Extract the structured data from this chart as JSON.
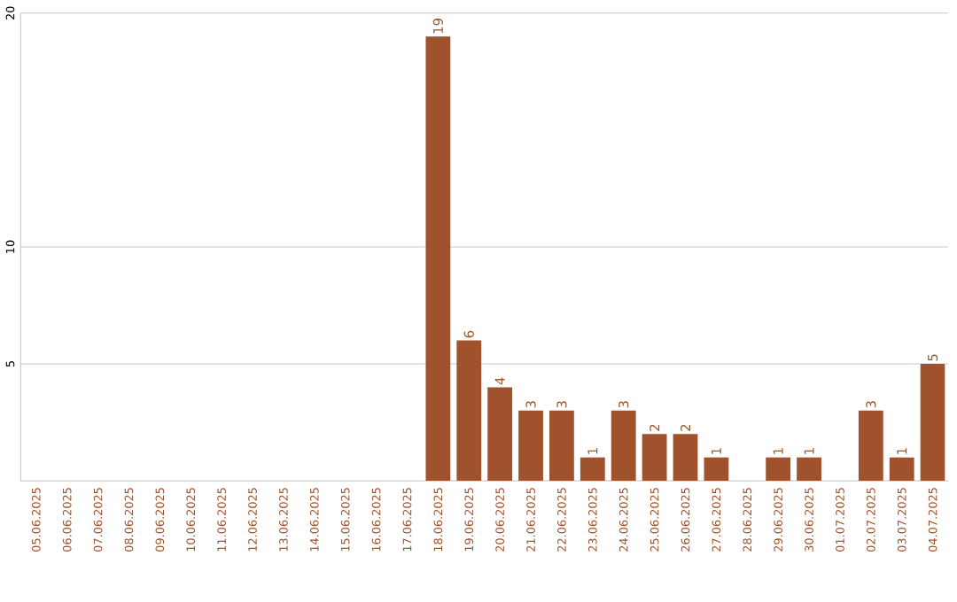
{
  "chart_data": {
    "type": "bar",
    "categories": [
      "05.06.2025",
      "06.06.2025",
      "07.06.2025",
      "08.06.2025",
      "09.06.2025",
      "10.06.2025",
      "11.06.2025",
      "12.06.2025",
      "13.06.2025",
      "14.06.2025",
      "15.06.2025",
      "16.06.2025",
      "17.06.2025",
      "18.06.2025",
      "19.06.2025",
      "20.06.2025",
      "21.06.2025",
      "22.06.2025",
      "23.06.2025",
      "24.06.2025",
      "25.06.2025",
      "26.06.2025",
      "27.06.2025",
      "28.06.2025",
      "29.06.2025",
      "30.06.2025",
      "01.07.2025",
      "02.07.2025",
      "03.07.2025",
      "04.07.2025"
    ],
    "values": [
      0,
      0,
      0,
      0,
      0,
      0,
      0,
      0,
      0,
      0,
      0,
      0,
      0,
      19,
      6,
      4,
      3,
      3,
      1,
      3,
      2,
      2,
      1,
      0,
      1,
      1,
      0,
      3,
      1,
      5
    ],
    "value_labels": [
      null,
      null,
      null,
      null,
      null,
      null,
      null,
      null,
      null,
      null,
      null,
      null,
      null,
      "19",
      "6",
      "4",
      "3",
      "3",
      "1",
      "3",
      "2",
      "2",
      "1",
      null,
      "1",
      "1",
      null,
      "3",
      "1",
      "5"
    ],
    "color": "#a0522d",
    "ylim": [
      0,
      20
    ],
    "yticks": [
      5,
      10,
      20
    ],
    "grid": "y"
  }
}
